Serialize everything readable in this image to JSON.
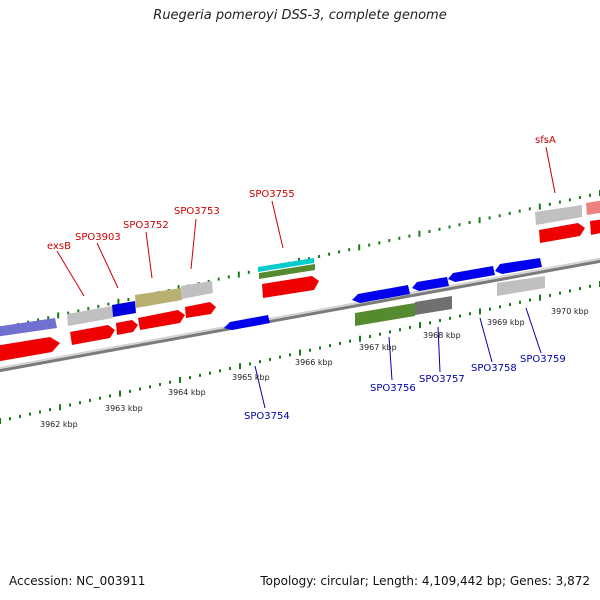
{
  "title": "Ruegeria pomeroyi DSS-3, complete genome",
  "footer": {
    "accession": "Accession: NC_003911",
    "summary": "Topology: circular; Length: 4,109,442 bp; Genes: 3,872"
  },
  "colors": {
    "forward": "#ee0000",
    "reverse": "#0000ee",
    "backbone": "#888888",
    "tick": "#1a7a1a"
  },
  "top_labels": [
    "exsB",
    "SPO3903",
    "SPO3752",
    "SPO3753",
    "SPO3755",
    "sfsA"
  ],
  "bottom_labels": [
    "SPO3754",
    "SPO3756",
    "SPO3757",
    "SPO3758",
    "SPO3759"
  ],
  "scale_labels": [
    "3962 kbp",
    "3963 kbp",
    "3964 kbp",
    "3965 kbp",
    "3966 kbp",
    "3967 kbp",
    "3968 kbp",
    "3969 kbp",
    "3970 kbp"
  ]
}
